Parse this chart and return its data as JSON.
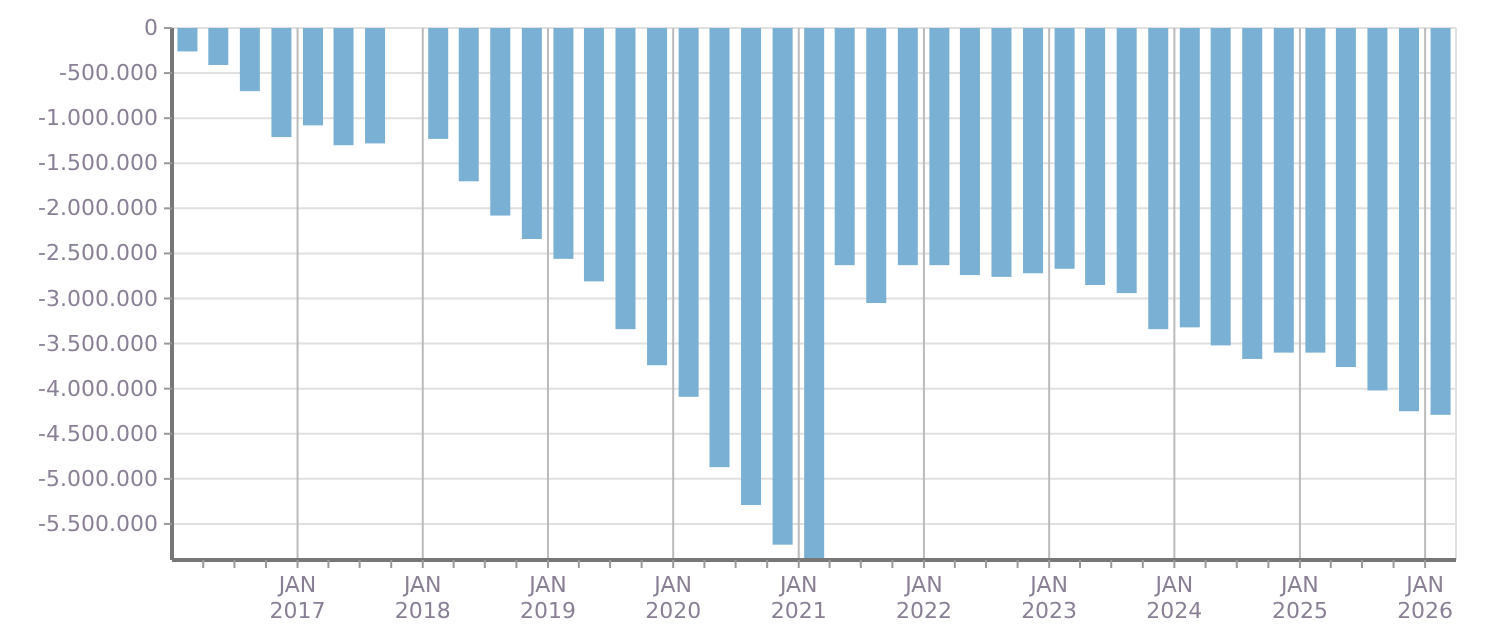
{
  "chart_data": {
    "type": "bar",
    "x": [
      "2016-02-15",
      "2016-05-15",
      "2016-08-15",
      "2016-11-15",
      "2017-02-15",
      "2017-05-15",
      "2017-08-15",
      "2017-11-15",
      "2018-02-15",
      "2018-05-15",
      "2018-08-15",
      "2018-11-15",
      "2019-02-15",
      "2019-05-15",
      "2019-08-15",
      "2019-11-15",
      "2020-02-15",
      "2020-05-15",
      "2020-08-15",
      "2020-11-15",
      "2021-02-15",
      "2021-05-15",
      "2021-08-15",
      "2021-11-15",
      "2022-02-15",
      "2022-05-15",
      "2022-08-15",
      "2022-11-15",
      "2023-02-15",
      "2023-05-15",
      "2023-08-15",
      "2023-11-15",
      "2024-02-15",
      "2024-05-15",
      "2024-08-15",
      "2024-11-15",
      "2025-02-15",
      "2025-05-15",
      "2025-08-15",
      "2025-11-15",
      "2026-02-15"
    ],
    "series": [
      {
        "color": "#7ab0d3",
        "values": [
          -260000,
          -410000,
          -700000,
          -1210000,
          -1080000,
          -1300000,
          -1280000,
          null,
          -1230000,
          -1700000,
          -2080000,
          -2340000,
          -2560000,
          -2810000,
          -3340000,
          -3740000,
          -4090000,
          -4870000,
          -5290000,
          -5730000,
          -5900000,
          -2630000,
          -3050000,
          -2630000,
          -2630000,
          -2740000,
          -2760000,
          -2720000,
          -2670000,
          -2850000,
          -2940000,
          -3340000,
          -3320000,
          -3520000,
          -3670000,
          -3600000,
          -3600000,
          -3760000,
          -4020000,
          -4250000,
          -4290000
        ]
      }
    ],
    "xlim": [
      "2016-01-01",
      "2026-04-01"
    ],
    "xticks": [
      {
        "value": "2016-04-01",
        "label": null
      },
      {
        "value": "2016-07-01",
        "label": null
      },
      {
        "value": "2016-10-01",
        "label": null
      },
      {
        "value": "2017-01-01",
        "label": "JAN 2017"
      },
      {
        "value": "2017-04-01",
        "label": null
      },
      {
        "value": "2017-07-01",
        "label": null
      },
      {
        "value": "2017-10-01",
        "label": null
      },
      {
        "value": "2018-01-01",
        "label": "JAN 2018"
      },
      {
        "value": "2018-04-01",
        "label": null
      },
      {
        "value": "2018-07-01",
        "label": null
      },
      {
        "value": "2018-10-01",
        "label": null
      },
      {
        "value": "2019-01-01",
        "label": "JAN 2019"
      },
      {
        "value": "2019-04-01",
        "label": null
      },
      {
        "value": "2019-07-01",
        "label": null
      },
      {
        "value": "2019-10-01",
        "label": null
      },
      {
        "value": "2020-01-01",
        "label": "JAN 2020"
      },
      {
        "value": "2020-04-01",
        "label": null
      },
      {
        "value": "2020-07-01",
        "label": null
      },
      {
        "value": "2020-10-01",
        "label": null
      },
      {
        "value": "2021-01-01",
        "label": "JAN 2021"
      },
      {
        "value": "2021-04-01",
        "label": null
      },
      {
        "value": "2021-07-01",
        "label": null
      },
      {
        "value": "2021-10-01",
        "label": null
      },
      {
        "value": "2022-01-01",
        "label": "JAN 2022"
      },
      {
        "value": "2022-04-01",
        "label": null
      },
      {
        "value": "2022-07-01",
        "label": null
      },
      {
        "value": "2022-10-01",
        "label": null
      },
      {
        "value": "2023-01-01",
        "label": "JAN 2023"
      },
      {
        "value": "2023-04-01",
        "label": null
      },
      {
        "value": "2023-07-01",
        "label": null
      },
      {
        "value": "2023-10-01",
        "label": null
      },
      {
        "value": "2024-01-01",
        "label": "JAN 2024"
      },
      {
        "value": "2024-04-01",
        "label": null
      },
      {
        "value": "2024-07-01",
        "label": null
      },
      {
        "value": "2024-10-01",
        "label": null
      },
      {
        "value": "2025-01-01",
        "label": "JAN 2025"
      },
      {
        "value": "2025-04-01",
        "label": null
      },
      {
        "value": "2025-07-01",
        "label": null
      },
      {
        "value": "2025-10-01",
        "label": null
      },
      {
        "value": "2026-01-01",
        "label": "JAN 2026"
      }
    ],
    "ylim": [
      -5900000,
      0
    ],
    "yticks": [
      0,
      {
        "value": -500000,
        "label": "-500.000"
      },
      {
        "value": -1000000,
        "label": "-1.000.000"
      },
      {
        "value": -1500000,
        "label": "-1.500.000"
      },
      {
        "value": -2000000,
        "label": "-2.000.000"
      },
      {
        "value": -2500000,
        "label": "-2.500.000"
      },
      {
        "value": -3000000,
        "label": "-3.000.000"
      },
      {
        "value": -3500000,
        "label": "-3.500.000"
      },
      {
        "value": -4000000,
        "label": "-4.000.000"
      },
      {
        "value": -4500000,
        "label": "-4.500.000"
      },
      {
        "value": -5000000,
        "label": "-5.000.000"
      },
      {
        "value": -5500000,
        "label": "-5.500.000"
      }
    ],
    "grid": true
  }
}
